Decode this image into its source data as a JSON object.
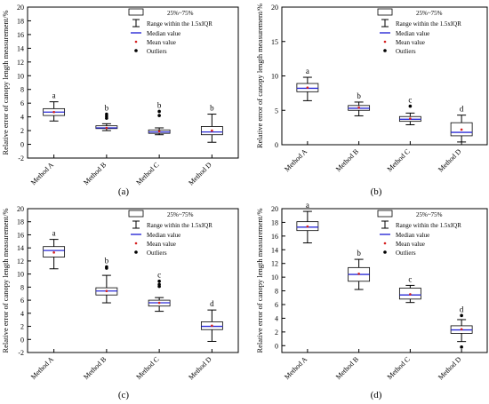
{
  "figure": {
    "panels_order": [
      "a",
      "b",
      "c",
      "d"
    ]
  },
  "legend": {
    "box": "25%~75%",
    "whisker": "Range within the 1.5xIQR",
    "median": "Median value",
    "mean": "Mean value",
    "outliers": "Outliers"
  },
  "colors": {
    "median": "#2b2bd6",
    "mean": "#d62020",
    "box_edge": "#000000",
    "axis": "#000000",
    "outlier": "#000000"
  },
  "chart_data": [
    {
      "type": "box",
      "panel_label": "(a)",
      "ylabel": "Relative error of canopy length measurement/%",
      "ylim": [
        -2,
        20
      ],
      "yticks": [
        -2,
        0,
        2,
        4,
        6,
        8,
        10,
        12,
        14,
        16,
        18,
        20
      ],
      "categories": [
        "Method A",
        "Method B",
        "Method C",
        "Method D"
      ],
      "letters": [
        "a",
        "b",
        "b",
        "b"
      ],
      "boxes": [
        {
          "whisker_low": 3.4,
          "q1": 4.2,
          "median": 4.7,
          "q3": 5.2,
          "whisker_high": 6.2,
          "mean": 4.7,
          "outliers": []
        },
        {
          "whisker_low": 2.0,
          "q1": 2.3,
          "median": 2.4,
          "q3": 2.7,
          "whisker_high": 3.0,
          "mean": 2.4,
          "outliers": [
            3.8,
            4.1,
            4.4
          ]
        },
        {
          "whisker_low": 1.4,
          "q1": 1.6,
          "median": 1.8,
          "q3": 2.1,
          "whisker_high": 2.4,
          "mean": 1.9,
          "outliers": [
            4.2,
            4.8
          ]
        },
        {
          "whisker_low": 0.3,
          "q1": 1.4,
          "median": 1.8,
          "q3": 2.6,
          "whisker_high": 4.4,
          "mean": 2.0,
          "outliers": []
        }
      ]
    },
    {
      "type": "box",
      "panel_label": "(b)",
      "ylabel": "Relative error of canopy length measurement/%",
      "ylim": [
        0,
        20
      ],
      "yticks": [
        0,
        5,
        10,
        15,
        20
      ],
      "categories": [
        "Method A",
        "Method B",
        "Method C",
        "Method D"
      ],
      "letters": [
        "a",
        "b",
        "c",
        "d"
      ],
      "boxes": [
        {
          "whisker_low": 6.4,
          "q1": 7.7,
          "median": 8.2,
          "q3": 8.9,
          "whisker_high": 9.8,
          "mean": 8.3,
          "outliers": []
        },
        {
          "whisker_low": 4.2,
          "q1": 5.0,
          "median": 5.3,
          "q3": 5.7,
          "whisker_high": 6.2,
          "mean": 5.4,
          "outliers": []
        },
        {
          "whisker_low": 2.9,
          "q1": 3.4,
          "median": 3.7,
          "q3": 4.1,
          "whisker_high": 4.6,
          "mean": 3.8,
          "outliers": [
            5.6
          ]
        },
        {
          "whisker_low": 0.4,
          "q1": 1.3,
          "median": 1.8,
          "q3": 3.2,
          "whisker_high": 4.3,
          "mean": 2.2,
          "outliers": []
        }
      ]
    },
    {
      "type": "box",
      "panel_label": "(c)",
      "ylabel": "Relative error of canopy length measurement/%",
      "ylim": [
        -2,
        20
      ],
      "yticks": [
        -2,
        0,
        2,
        4,
        6,
        8,
        10,
        12,
        14,
        16,
        18,
        20
      ],
      "categories": [
        "Method A",
        "Method B",
        "Method C",
        "Method D"
      ],
      "letters": [
        "a",
        "b",
        "c",
        "d"
      ],
      "boxes": [
        {
          "whisker_low": 10.8,
          "q1": 12.6,
          "median": 13.6,
          "q3": 14.2,
          "whisker_high": 15.3,
          "mean": 13.3,
          "outliers": []
        },
        {
          "whisker_low": 5.6,
          "q1": 6.8,
          "median": 7.4,
          "q3": 7.9,
          "whisker_high": 9.8,
          "mean": 7.4,
          "outliers": [
            10.9,
            11.1
          ]
        },
        {
          "whisker_low": 4.3,
          "q1": 5.1,
          "median": 5.6,
          "q3": 6.0,
          "whisker_high": 6.4,
          "mean": 5.6,
          "outliers": [
            8.1,
            8.4,
            8.9
          ]
        },
        {
          "whisker_low": -0.3,
          "q1": 1.5,
          "median": 2.0,
          "q3": 2.7,
          "whisker_high": 4.5,
          "mean": 2.1,
          "outliers": []
        }
      ]
    },
    {
      "type": "box",
      "panel_label": "(d)",
      "ylabel": "Relative error of canopy length measurement/%",
      "ylim": [
        -1,
        20
      ],
      "yticks": [
        0,
        2,
        4,
        6,
        8,
        10,
        12,
        14,
        16,
        18,
        20
      ],
      "categories": [
        "Method A",
        "Method B",
        "Method C",
        "Method D"
      ],
      "letters": [
        "a",
        "b",
        "c",
        "d"
      ],
      "boxes": [
        {
          "whisker_low": 15.0,
          "q1": 16.8,
          "median": 17.3,
          "q3": 18.1,
          "whisker_high": 19.6,
          "mean": 17.4,
          "outliers": []
        },
        {
          "whisker_low": 8.2,
          "q1": 9.4,
          "median": 10.4,
          "q3": 11.4,
          "whisker_high": 12.6,
          "mean": 10.5,
          "outliers": []
        },
        {
          "whisker_low": 6.3,
          "q1": 6.8,
          "median": 7.4,
          "q3": 8.4,
          "whisker_high": 8.8,
          "mean": 7.5,
          "outliers": []
        },
        {
          "whisker_low": 0.6,
          "q1": 1.8,
          "median": 2.3,
          "q3": 2.9,
          "whisker_high": 3.8,
          "mean": 2.4,
          "outliers": [
            -0.2,
            4.4
          ]
        }
      ]
    }
  ]
}
